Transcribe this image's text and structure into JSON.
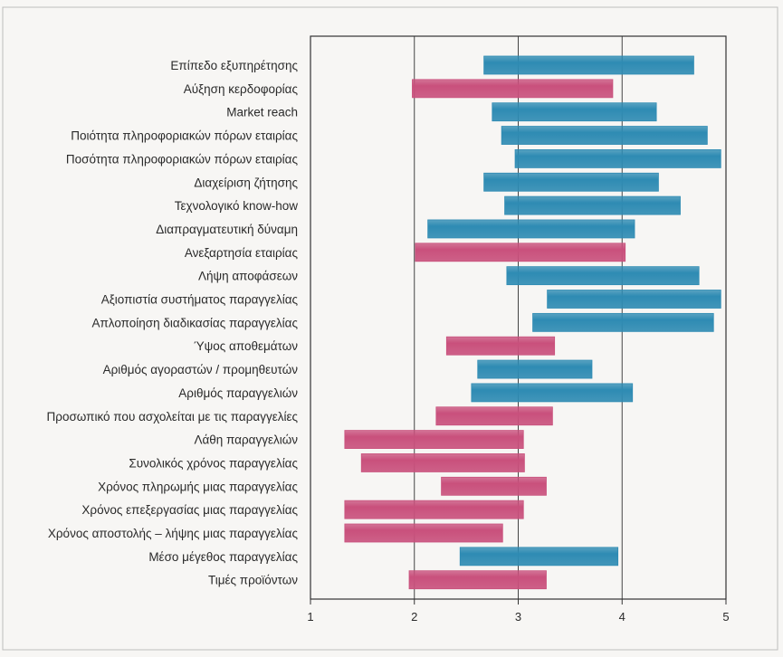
{
  "colors": {
    "positive": "#2e8bb3",
    "negative": "#c9507c",
    "axis": "#333333",
    "grid": "#444444",
    "frame": "#bdbdbd"
  },
  "chart_data": {
    "type": "bar",
    "orientation": "horizontal-range",
    "xlim": [
      1,
      5
    ],
    "xticks": [
      "1",
      "2",
      "3",
      "4",
      "5"
    ],
    "grid": true,
    "categories": [
      "Επίπεδο εξυπηρέτησης",
      "Αύξηση κερδοφορίας",
      "Market reach",
      "Ποιότητα πληροφοριακών πόρων εταιρίας",
      "Ποσότητα πληροφοριακών πόρων εταιρίας",
      "Διαχείριση ζήτησης",
      "Τεχνολογικό know-how",
      "Διαπραγματευτική δύναμη",
      "Ανεξαρτησία εταιρίας",
      "Λήψη αποφάσεων",
      "Αξιοπιστία συστήματος παραγγελίας",
      "Απλοποίηση διαδικασίας παραγγελίας",
      "Ύψος αποθεμάτων",
      "Αριθμός αγοραστών / προμηθευτών",
      "Αριθμός παραγγελιών",
      "Προσωπικό που ασχολείται με τις παραγγελίες",
      "Λάθη παραγγελιών",
      "Συνολικός χρόνος παραγγελίας",
      "Χρόνος πληρωμής μιας παραγγελίας",
      "Χρόνος επεξεργασίας μιας παραγγελίας",
      "Χρόνος αποστολής – λήψης μιας παραγγελίας",
      "Μέσο μέγεθος παραγγελίας",
      "Τιμές προϊόντων"
    ],
    "ranges": [
      [
        2.67,
        4.69
      ],
      [
        1.98,
        3.91
      ],
      [
        2.75,
        4.33
      ],
      [
        2.84,
        4.82
      ],
      [
        2.97,
        4.95
      ],
      [
        2.67,
        4.35
      ],
      [
        2.87,
        4.56
      ],
      [
        2.13,
        4.12
      ],
      [
        2.01,
        4.03
      ],
      [
        2.89,
        4.74
      ],
      [
        3.28,
        4.95
      ],
      [
        3.14,
        4.88
      ],
      [
        2.31,
        3.35
      ],
      [
        2.61,
        3.71
      ],
      [
        2.55,
        4.1
      ],
      [
        2.21,
        3.33
      ],
      [
        1.33,
        3.05
      ],
      [
        1.49,
        3.06
      ],
      [
        2.26,
        3.27
      ],
      [
        1.33,
        3.05
      ],
      [
        1.33,
        2.85
      ],
      [
        2.44,
        3.96
      ],
      [
        1.95,
        3.27
      ]
    ],
    "colors_by_category": [
      "positive",
      "negative",
      "positive",
      "positive",
      "positive",
      "positive",
      "positive",
      "positive",
      "negative",
      "positive",
      "positive",
      "positive",
      "negative",
      "positive",
      "positive",
      "negative",
      "negative",
      "negative",
      "negative",
      "negative",
      "negative",
      "positive",
      "negative"
    ]
  }
}
